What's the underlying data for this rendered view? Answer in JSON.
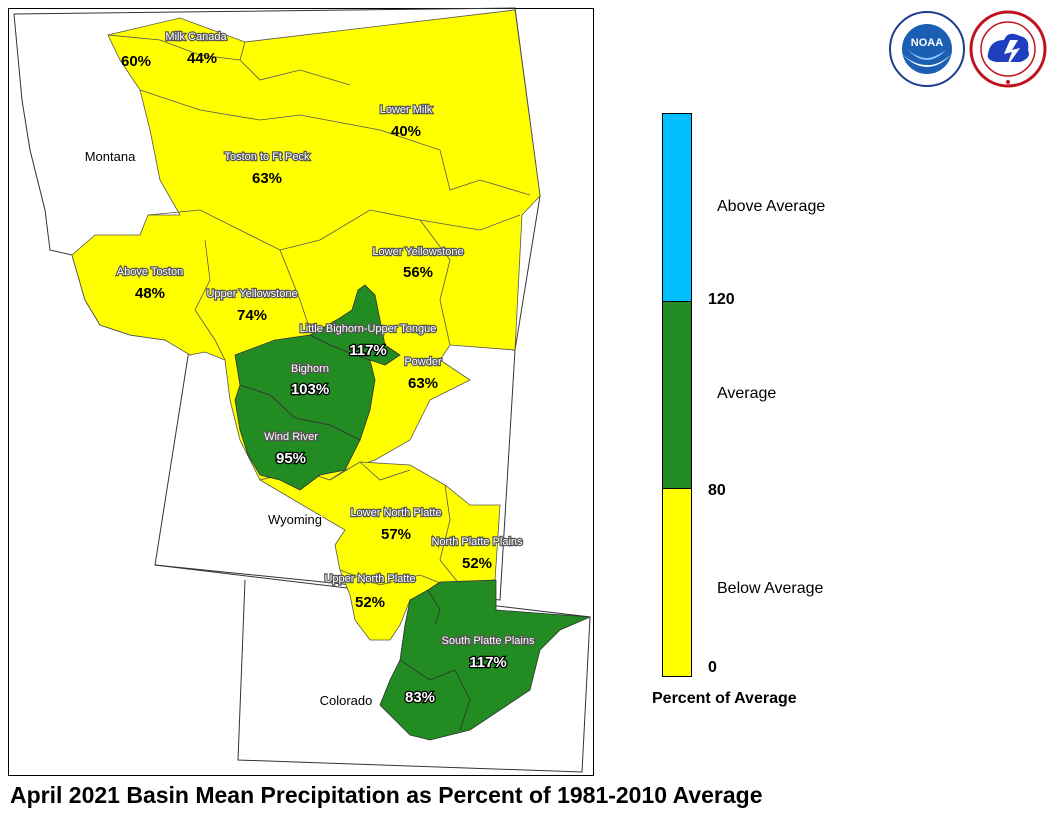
{
  "title": "April 2021 Basin Mean Precipitation as Percent of 1981-2010 Average",
  "legend": {
    "title": "Percent of Average",
    "ticks": [
      "120",
      "80",
      "0"
    ],
    "categories": [
      {
        "label": "Above Average",
        "color": "#00bfff"
      },
      {
        "label": "Average",
        "color": "#228b22"
      },
      {
        "label": "Below Average",
        "color": "#ffff00"
      }
    ]
  },
  "states": [
    "Montana",
    "Wyoming",
    "Colorado"
  ],
  "basins": [
    {
      "name": "Milk Canada",
      "percent": "44%",
      "category": "Below Average"
    },
    {
      "name": "",
      "percent": "60%",
      "category": "Below Average"
    },
    {
      "name": "Lower Milk",
      "percent": "40%",
      "category": "Below Average"
    },
    {
      "name": "Toston to Ft Peck",
      "percent": "63%",
      "category": "Below Average"
    },
    {
      "name": "Above Toston",
      "percent": "48%",
      "category": "Below Average"
    },
    {
      "name": "Lower Yellowstone",
      "percent": "56%",
      "category": "Below Average"
    },
    {
      "name": "Upper Yellowstone",
      "percent": "74%",
      "category": "Below Average"
    },
    {
      "name": "Little Bighorn-Upper Tongue",
      "percent": "117%",
      "category": "Average"
    },
    {
      "name": "Bighorn",
      "percent": "103%",
      "category": "Average"
    },
    {
      "name": "Powder",
      "percent": "63%",
      "category": "Below Average"
    },
    {
      "name": "Wind River",
      "percent": "95%",
      "category": "Average"
    },
    {
      "name": "Lower North Platte",
      "percent": "57%",
      "category": "Below Average"
    },
    {
      "name": "North Platte Plains",
      "percent": "52%",
      "category": "Below Average"
    },
    {
      "name": "Upper North Platte",
      "percent": "52%",
      "category": "Below Average"
    },
    {
      "name": "South Platte Plains",
      "percent": "117%",
      "category": "Average"
    },
    {
      "name": "",
      "percent": "83%",
      "category": "Average"
    }
  ],
  "logos": [
    {
      "icon": "noaa-logo-icon",
      "text": "NOAA",
      "ring_text": "NATIONAL OCEANIC AND ATMOSPHERIC ADMINISTRATION"
    },
    {
      "icon": "nws-logo-icon",
      "ring_text": "NATIONAL WEATHER SERVICE"
    }
  ]
}
